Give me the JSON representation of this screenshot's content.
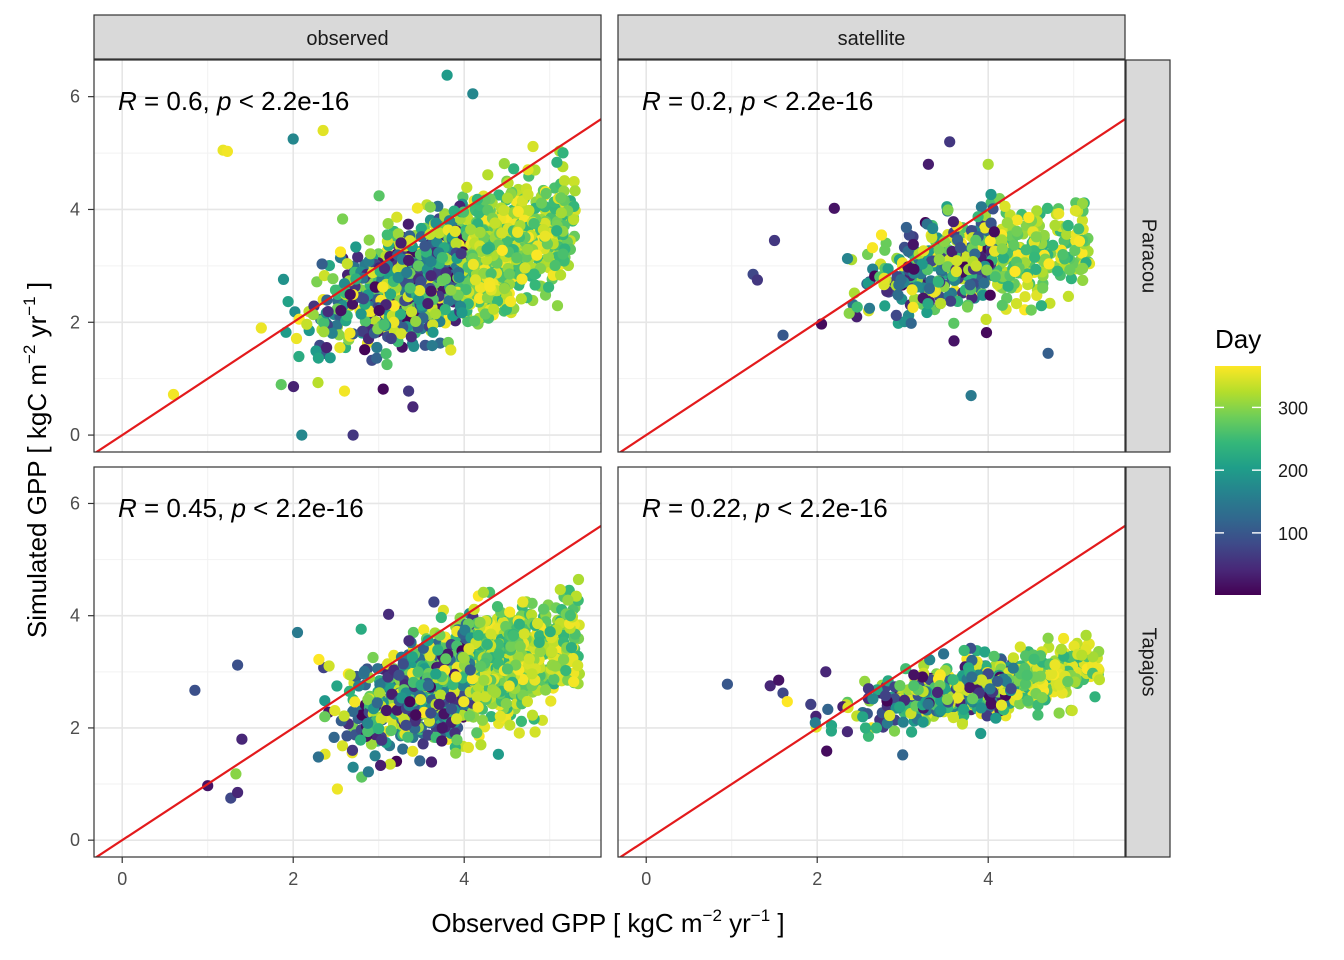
{
  "chart_data": {
    "type": "scatter",
    "facet_columns": [
      "observed",
      "satellite"
    ],
    "facet_rows": [
      "Paracou",
      "Tapajos"
    ],
    "xlabel": {
      "main": "Observed GPP [ kgC m",
      "exp1": "−2",
      "mid": " yr",
      "exp2": "−1",
      "end": " ]"
    },
    "ylabel": {
      "main": "Simulated GPP [ kgC m",
      "exp1": "−2",
      "mid": " yr",
      "exp2": "−1",
      "end": " ]"
    },
    "xlim": [
      -0.33,
      5.6
    ],
    "ylim": [
      -0.3,
      6.65
    ],
    "x_ticks": [
      0,
      2,
      4
    ],
    "y_ticks": [
      0,
      2,
      4,
      6
    ],
    "reference_line": {
      "type": "1:1 line",
      "color": "#e31a1c"
    },
    "color_scale": {
      "title": "Day",
      "palette": "viridis",
      "range": [
        1,
        366
      ],
      "ticks": [
        100,
        200,
        300
      ],
      "stops": [
        "#440154",
        "#482878",
        "#3e4a89",
        "#31688e",
        "#26828e",
        "#1f9e89",
        "#35b779",
        "#6ece58",
        "#b5de2b",
        "#fde725"
      ]
    },
    "panels": [
      {
        "column": "observed",
        "row": "Paracou",
        "stat": {
          "R": "0.6",
          "p": "2.2e-16"
        },
        "cloud": {
          "n": 1500,
          "x_center": 3.9,
          "x_spread": 0.75,
          "x_min": 0.6,
          "x_max": 5.3,
          "slope": 0.55,
          "intercept": 0.85,
          "noise": 0.5,
          "y_min": 0.0,
          "y_max": 6.4
        },
        "highlights": [
          {
            "x": 1.18,
            "y": 5.05,
            "day": 355
          },
          {
            "x": 1.23,
            "y": 5.03,
            "day": 360
          },
          {
            "x": 2.35,
            "y": 5.4,
            "day": 350
          },
          {
            "x": 3.8,
            "y": 6.38,
            "day": 200
          },
          {
            "x": 2.1,
            "y": 0.0,
            "day": 170
          },
          {
            "x": 3.35,
            "y": 0.78,
            "day": 60
          },
          {
            "x": 3.4,
            "y": 0.5,
            "day": 40
          },
          {
            "x": 2.6,
            "y": 0.78,
            "day": 360
          },
          {
            "x": 0.6,
            "y": 0.72,
            "day": 360
          },
          {
            "x": 2.0,
            "y": 5.25,
            "day": 170
          },
          {
            "x": 4.1,
            "y": 6.05,
            "day": 170
          },
          {
            "x": 2.7,
            "y": 0.0,
            "day": 60
          }
        ]
      },
      {
        "column": "satellite",
        "row": "Paracou",
        "stat": {
          "R": "0.2",
          "p": "2.2e-16"
        },
        "cloud": {
          "n": 520,
          "x_center": 3.9,
          "x_spread": 0.65,
          "x_min": 1.2,
          "x_max": 5.2,
          "slope": 0.2,
          "intercept": 2.3,
          "noise": 0.42,
          "y_min": 0.7,
          "y_max": 5.3
        },
        "highlights": [
          {
            "x": 3.55,
            "y": 5.2,
            "day": 60
          },
          {
            "x": 3.3,
            "y": 4.8,
            "day": 30
          },
          {
            "x": 4.0,
            "y": 4.8,
            "day": 320
          },
          {
            "x": 3.8,
            "y": 0.7,
            "day": 150
          },
          {
            "x": 1.25,
            "y": 2.85,
            "day": 80
          },
          {
            "x": 1.3,
            "y": 2.75,
            "day": 60
          },
          {
            "x": 1.6,
            "y": 1.77,
            "day": 100
          },
          {
            "x": 2.05,
            "y": 1.97,
            "day": 10
          },
          {
            "x": 2.2,
            "y": 4.02,
            "day": 20
          },
          {
            "x": 4.7,
            "y": 1.45,
            "day": 110
          },
          {
            "x": 3.6,
            "y": 1.67,
            "day": 20
          },
          {
            "x": 1.5,
            "y": 3.45,
            "day": 60
          }
        ]
      },
      {
        "column": "observed",
        "row": "Tapajos",
        "stat": {
          "R": "0.45",
          "p": "2.2e-16"
        },
        "cloud": {
          "n": 1400,
          "x_center": 4.05,
          "x_spread": 0.65,
          "x_min": 0.9,
          "x_max": 5.35,
          "slope": 0.48,
          "intercept": 1.0,
          "noise": 0.44,
          "y_min": 0.6,
          "y_max": 5.0
        },
        "highlights": [
          {
            "x": 0.85,
            "y": 2.67,
            "day": 90
          },
          {
            "x": 1.0,
            "y": 0.97,
            "day": 20
          },
          {
            "x": 1.27,
            "y": 0.75,
            "day": 80
          },
          {
            "x": 1.35,
            "y": 0.85,
            "day": 40
          },
          {
            "x": 1.35,
            "y": 3.12,
            "day": 90
          },
          {
            "x": 1.4,
            "y": 1.8,
            "day": 40
          },
          {
            "x": 1.33,
            "y": 1.18,
            "day": 300
          },
          {
            "x": 2.05,
            "y": 3.7,
            "day": 150
          },
          {
            "x": 2.3,
            "y": 3.22,
            "day": 370
          },
          {
            "x": 3.9,
            "y": 1.55,
            "day": 300
          },
          {
            "x": 4.4,
            "y": 1.53,
            "day": 200
          },
          {
            "x": 2.7,
            "y": 1.3,
            "day": 170
          }
        ]
      },
      {
        "column": "satellite",
        "row": "Tapajos",
        "stat": {
          "R": "0.22",
          "p": "2.2e-16"
        },
        "cloud": {
          "n": 620,
          "x_center": 4.0,
          "x_spread": 0.7,
          "x_min": 1.8,
          "x_max": 5.3,
          "slope": 0.3,
          "intercept": 1.55,
          "noise": 0.25,
          "y_min": 1.5,
          "y_max": 3.65
        },
        "highlights": [
          {
            "x": 0.95,
            "y": 2.78,
            "day": 100
          },
          {
            "x": 1.45,
            "y": 2.75,
            "day": 40
          },
          {
            "x": 1.55,
            "y": 2.85,
            "day": 20
          },
          {
            "x": 1.6,
            "y": 2.62,
            "day": 80
          },
          {
            "x": 1.65,
            "y": 2.47,
            "day": 370
          },
          {
            "x": 3.0,
            "y": 1.52,
            "day": 120
          },
          {
            "x": 4.7,
            "y": 3.6,
            "day": 300
          },
          {
            "x": 2.1,
            "y": 3.0,
            "day": 40
          },
          {
            "x": 2.6,
            "y": 2.7,
            "day": 60
          },
          {
            "x": 5.3,
            "y": 2.86,
            "day": 330
          }
        ]
      }
    ]
  }
}
